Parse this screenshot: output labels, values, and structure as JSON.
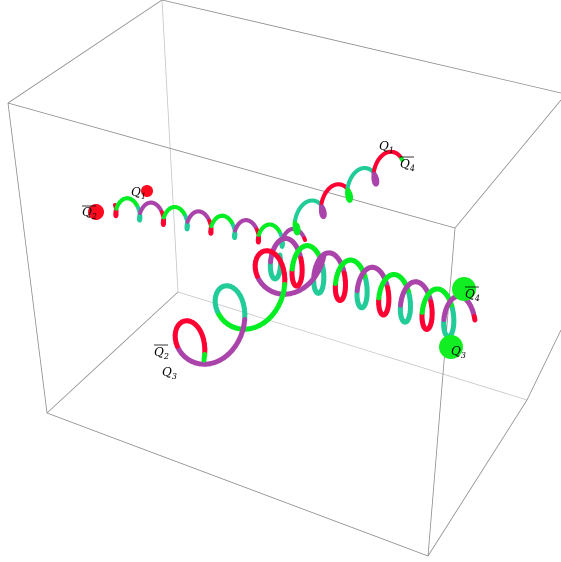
{
  "labels": {
    "q1_left": {
      "main": "Q",
      "sub": "1",
      "overline": false
    },
    "q2_left": {
      "main": "Q",
      "sub": "2",
      "overline": true
    },
    "q1_top": {
      "main": "Q",
      "sub": "1",
      "overline": false
    },
    "q4_top": {
      "main": "Q",
      "sub": "4",
      "overline": true
    },
    "q4_right": {
      "main": "Q",
      "sub": "4",
      "overline": true
    },
    "q3_right": {
      "main": "Q",
      "sub": "3",
      "overline": false
    },
    "q2_bottom": {
      "main": "Q",
      "sub": "2",
      "overline": true
    },
    "q3_bottom": {
      "main": "Q",
      "sub": "3",
      "overline": false
    }
  },
  "colors": {
    "red": "#ff0033",
    "green": "#00ee22",
    "teal": "#22cc99",
    "purple": "#aa44aa",
    "box": "#888888"
  }
}
